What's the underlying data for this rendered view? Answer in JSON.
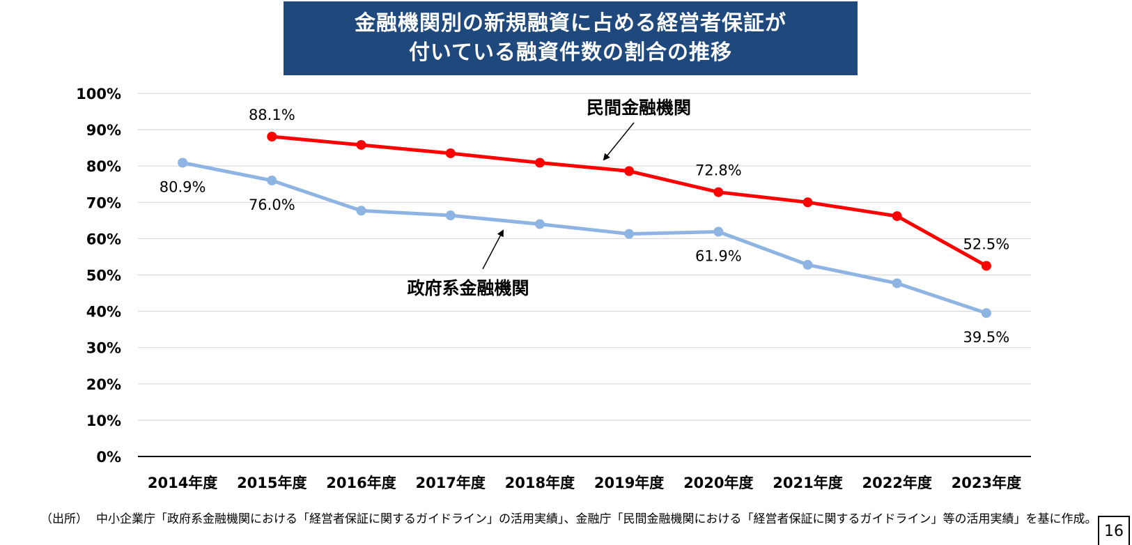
{
  "chart_data": {
    "type": "line",
    "title": "金融機関別の新規融資に占める経営者保証が付いている融資件数の割合の推移",
    "title_lines": [
      "金融機関別の新規融資に占める経営者保証が",
      "付いている融資件数の割合の推移"
    ],
    "categories": [
      "2014年度",
      "2015年度",
      "2016年度",
      "2017年度",
      "2018年度",
      "2019年度",
      "2020年度",
      "2021年度",
      "2022年度",
      "2023年度"
    ],
    "y_ticks": [
      "0%",
      "10%",
      "20%",
      "30%",
      "40%",
      "50%",
      "60%",
      "70%",
      "80%",
      "90%",
      "100%"
    ],
    "ylim": [
      0,
      100
    ],
    "grid": true,
    "xlabel": "",
    "ylabel": "",
    "series": [
      {
        "name": "民間金融機関",
        "color": "#ff0000",
        "values": [
          null,
          88.1,
          85.8,
          83.5,
          80.9,
          78.6,
          72.8,
          70.0,
          66.2,
          52.5
        ],
        "labels": [
          {
            "index": 1,
            "text": "88.1%"
          },
          {
            "index": 6,
            "text": "72.8%"
          },
          {
            "index": 9,
            "text": "52.5%"
          }
        ]
      },
      {
        "name": "政府系金融機関",
        "color": "#8eb4e3",
        "values": [
          80.9,
          76.0,
          67.7,
          66.4,
          64.0,
          61.3,
          61.9,
          52.8,
          47.7,
          39.5
        ],
        "labels": [
          {
            "index": 0,
            "text": "80.9%"
          },
          {
            "index": 1,
            "text": "76.0%"
          },
          {
            "index": 6,
            "text": "61.9%"
          },
          {
            "index": 9,
            "text": "39.5%"
          }
        ]
      }
    ]
  },
  "source": {
    "label": "（出所）",
    "text": "中小企業庁「政府系金融機関における「経営者保証に関するガイドライン」の活用実績」、金融庁「民間金融機関における「経営者保証に関するガイドライン」等の活用実績」を基に作成。"
  },
  "page_number": "16"
}
